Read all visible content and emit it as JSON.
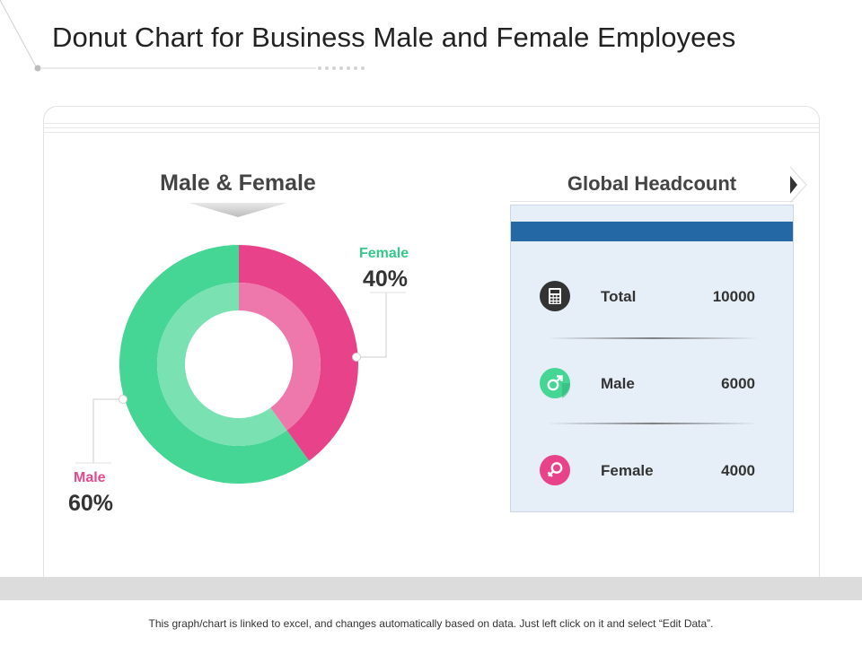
{
  "page": {
    "title": "Donut Chart for Business Male and Female Employees",
    "footer_note": "This graph/chart is linked to excel, and changes automatically based on data. Just left click on it and select “Edit Data”."
  },
  "chart_data": {
    "type": "pie",
    "title": "Male & Female",
    "categories": [
      "Female",
      "Male"
    ],
    "values": [
      40,
      60
    ],
    "value_labels": [
      "40%",
      "60%"
    ],
    "colors": {
      "Female": "#e8438a",
      "Male": "#45d594"
    },
    "label_colors": {
      "Female": "#33c98a",
      "Male": "#e04a8c"
    }
  },
  "headcount": {
    "title": "Global Headcount",
    "header_color": "#2469a6",
    "rows": [
      {
        "label": "Total",
        "value": "10000",
        "icon": "calculator-icon",
        "icon_color": "#333333"
      },
      {
        "label": "Male",
        "value": "6000",
        "icon": "male-icon",
        "icon_color": "#45d594"
      },
      {
        "label": "Female",
        "value": "4000",
        "icon": "female-icon",
        "icon_color": "#e8438a"
      }
    ]
  }
}
